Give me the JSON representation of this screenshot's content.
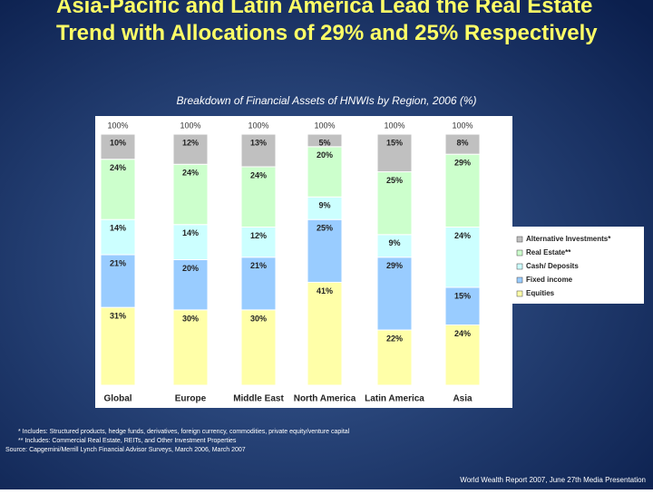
{
  "chart_data": {
    "type": "stacked_bar",
    "title": "Asia-Pacific and Latin America Lead the Real Estate Trend with Allocations of 29% and 25% Respectively",
    "subtitle": "Breakdown of Financial Assets of HNWIs by Region, 2006 (%)",
    "categories": [
      "Global",
      "Europe",
      "Middle East",
      "North America",
      "Latin America",
      "Asia"
    ],
    "total_labels": [
      "100%",
      "100%",
      "100%",
      "100%",
      "100%",
      "100%"
    ],
    "ylim": [
      0,
      100
    ],
    "series": [
      {
        "name": "Equities",
        "color": "#ffffa8",
        "values": [
          31,
          30,
          30,
          41,
          22,
          24
        ],
        "value_labels": [
          "31%",
          "30%",
          "30%",
          "41%",
          "22%",
          "24%"
        ]
      },
      {
        "name": "Fixed income",
        "color": "#99ccff",
        "values": [
          21,
          20,
          21,
          25,
          29,
          15
        ],
        "value_labels": [
          "21%",
          "20%",
          "21%",
          "25%",
          "29%",
          "15%"
        ]
      },
      {
        "name": "Cash/ Deposits",
        "color": "#ccffff",
        "values": [
          14,
          14,
          12,
          9,
          9,
          24
        ],
        "value_labels": [
          "14%",
          "14%",
          "12%",
          "9%",
          "9%",
          "24%"
        ]
      },
      {
        "name": "Real Estate**",
        "color": "#ccffcc",
        "values": [
          24,
          24,
          24,
          20,
          25,
          29
        ],
        "value_labels": [
          "24%",
          "24%",
          "24%",
          "20%",
          "25%",
          "29%"
        ]
      },
      {
        "name": "Alternative Investments*",
        "color": "#c0c0c0",
        "values": [
          10,
          12,
          13,
          5,
          15,
          8
        ],
        "value_labels": [
          "10%",
          "12%",
          "13%",
          "5%",
          "15%",
          "8%"
        ]
      }
    ],
    "footnotes": [
      "* Includes: Structured products, hedge funds, derivatives, foreign currency, commodities, private equity/venture capital",
      "** Includes: Commercial Real Estate, REITs, and Other Investment Properties",
      "Source: Capgemini/Merrill Lynch Financial Advisor Surveys, March 2006, March 2007"
    ],
    "footer": "World Wealth Report 2007, June 27th Media Presentation"
  }
}
